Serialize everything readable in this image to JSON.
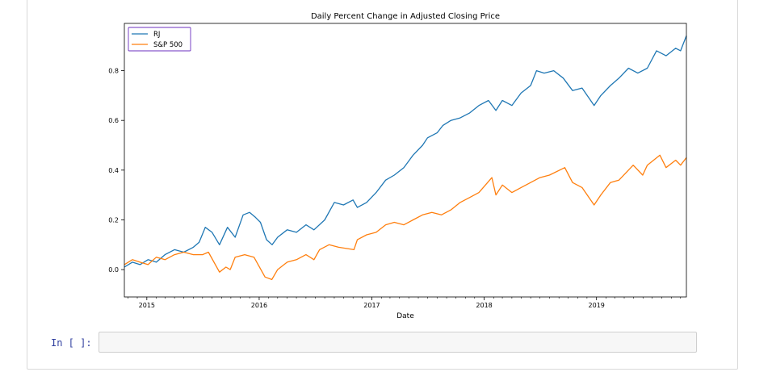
{
  "notebook": {
    "prompt_label": "In [ ]:"
  },
  "chart_data": {
    "type": "line",
    "title": "Daily Percent Change in Adjusted Closing Price",
    "xlabel": "Date",
    "ylabel": "",
    "x_ticks": [
      "2015",
      "2016",
      "2017",
      "2018",
      "2019"
    ],
    "y_ticks": [
      0.0,
      0.2,
      0.4,
      0.6,
      0.8
    ],
    "xlim": [
      "2014-10-20",
      "2019-10-20"
    ],
    "ylim": [
      -0.11,
      0.99
    ],
    "legend_position": "top-left",
    "series": [
      {
        "name": "RJ",
        "color": "#1f77b4",
        "points": [
          [
            "2014-10-20",
            0.01
          ],
          [
            "2014-11-15",
            0.03
          ],
          [
            "2014-12-10",
            0.02
          ],
          [
            "2015-01-05",
            0.04
          ],
          [
            "2015-02-01",
            0.03
          ],
          [
            "2015-03-01",
            0.06
          ],
          [
            "2015-04-01",
            0.08
          ],
          [
            "2015-05-01",
            0.07
          ],
          [
            "2015-06-01",
            0.09
          ],
          [
            "2015-06-20",
            0.11
          ],
          [
            "2015-07-10",
            0.17
          ],
          [
            "2015-08-01",
            0.15
          ],
          [
            "2015-08-25",
            0.1
          ],
          [
            "2015-09-20",
            0.17
          ],
          [
            "2015-10-15",
            0.13
          ],
          [
            "2015-11-10",
            0.22
          ],
          [
            "2015-12-01",
            0.23
          ],
          [
            "2015-12-20",
            0.21
          ],
          [
            "2016-01-05",
            0.19
          ],
          [
            "2016-01-25",
            0.12
          ],
          [
            "2016-02-12",
            0.1
          ],
          [
            "2016-03-01",
            0.13
          ],
          [
            "2016-04-01",
            0.16
          ],
          [
            "2016-05-01",
            0.15
          ],
          [
            "2016-06-01",
            0.18
          ],
          [
            "2016-06-27",
            0.16
          ],
          [
            "2016-08-01",
            0.2
          ],
          [
            "2016-09-01",
            0.27
          ],
          [
            "2016-10-01",
            0.26
          ],
          [
            "2016-11-01",
            0.28
          ],
          [
            "2016-11-15",
            0.25
          ],
          [
            "2016-12-15",
            0.27
          ],
          [
            "2017-01-15",
            0.31
          ],
          [
            "2017-02-15",
            0.36
          ],
          [
            "2017-03-15",
            0.38
          ],
          [
            "2017-04-15",
            0.41
          ],
          [
            "2017-05-15",
            0.46
          ],
          [
            "2017-06-15",
            0.5
          ],
          [
            "2017-07-01",
            0.53
          ],
          [
            "2017-08-01",
            0.55
          ],
          [
            "2017-08-20",
            0.58
          ],
          [
            "2017-09-15",
            0.6
          ],
          [
            "2017-10-15",
            0.61
          ],
          [
            "2017-11-15",
            0.63
          ],
          [
            "2017-12-15",
            0.66
          ],
          [
            "2018-01-15",
            0.68
          ],
          [
            "2018-02-08",
            0.64
          ],
          [
            "2018-03-01",
            0.68
          ],
          [
            "2018-04-01",
            0.66
          ],
          [
            "2018-05-01",
            0.71
          ],
          [
            "2018-06-01",
            0.74
          ],
          [
            "2018-06-20",
            0.8
          ],
          [
            "2018-07-15",
            0.79
          ],
          [
            "2018-08-15",
            0.8
          ],
          [
            "2018-09-15",
            0.77
          ],
          [
            "2018-10-15",
            0.72
          ],
          [
            "2018-11-15",
            0.73
          ],
          [
            "2018-12-24",
            0.66
          ],
          [
            "2019-01-15",
            0.7
          ],
          [
            "2019-02-15",
            0.74
          ],
          [
            "2019-03-15",
            0.77
          ],
          [
            "2019-04-15",
            0.81
          ],
          [
            "2019-05-15",
            0.79
          ],
          [
            "2019-06-15",
            0.81
          ],
          [
            "2019-07-15",
            0.88
          ],
          [
            "2019-08-15",
            0.86
          ],
          [
            "2019-09-15",
            0.89
          ],
          [
            "2019-10-01",
            0.88
          ],
          [
            "2019-10-20",
            0.94
          ]
        ]
      },
      {
        "name": "S&P 500",
        "color": "#ff7f0e",
        "points": [
          [
            "2014-10-20",
            0.02
          ],
          [
            "2014-11-15",
            0.04
          ],
          [
            "2014-12-10",
            0.03
          ],
          [
            "2015-01-05",
            0.02
          ],
          [
            "2015-02-01",
            0.05
          ],
          [
            "2015-03-01",
            0.04
          ],
          [
            "2015-04-01",
            0.06
          ],
          [
            "2015-05-01",
            0.07
          ],
          [
            "2015-06-01",
            0.06
          ],
          [
            "2015-07-01",
            0.06
          ],
          [
            "2015-07-20",
            0.07
          ],
          [
            "2015-08-25",
            -0.01
          ],
          [
            "2015-09-15",
            0.01
          ],
          [
            "2015-09-29",
            0.0
          ],
          [
            "2015-10-15",
            0.05
          ],
          [
            "2015-11-15",
            0.06
          ],
          [
            "2015-12-15",
            0.05
          ],
          [
            "2016-01-20",
            -0.03
          ],
          [
            "2016-02-11",
            -0.04
          ],
          [
            "2016-03-01",
            0.0
          ],
          [
            "2016-04-01",
            0.03
          ],
          [
            "2016-05-01",
            0.04
          ],
          [
            "2016-06-01",
            0.06
          ],
          [
            "2016-06-27",
            0.04
          ],
          [
            "2016-07-15",
            0.08
          ],
          [
            "2016-08-15",
            0.1
          ],
          [
            "2016-09-15",
            0.09
          ],
          [
            "2016-11-04",
            0.08
          ],
          [
            "2016-11-15",
            0.12
          ],
          [
            "2016-12-15",
            0.14
          ],
          [
            "2017-01-15",
            0.15
          ],
          [
            "2017-02-15",
            0.18
          ],
          [
            "2017-03-15",
            0.19
          ],
          [
            "2017-04-15",
            0.18
          ],
          [
            "2017-05-15",
            0.2
          ],
          [
            "2017-06-15",
            0.22
          ],
          [
            "2017-07-15",
            0.23
          ],
          [
            "2017-08-15",
            0.22
          ],
          [
            "2017-09-15",
            0.24
          ],
          [
            "2017-10-15",
            0.27
          ],
          [
            "2017-11-15",
            0.29
          ],
          [
            "2017-12-15",
            0.31
          ],
          [
            "2018-01-26",
            0.37
          ],
          [
            "2018-02-08",
            0.3
          ],
          [
            "2018-03-01",
            0.34
          ],
          [
            "2018-04-01",
            0.31
          ],
          [
            "2018-05-01",
            0.33
          ],
          [
            "2018-06-01",
            0.35
          ],
          [
            "2018-07-01",
            0.37
          ],
          [
            "2018-08-01",
            0.38
          ],
          [
            "2018-09-20",
            0.41
          ],
          [
            "2018-10-15",
            0.35
          ],
          [
            "2018-11-15",
            0.33
          ],
          [
            "2018-12-24",
            0.26
          ],
          [
            "2019-01-15",
            0.3
          ],
          [
            "2019-02-15",
            0.35
          ],
          [
            "2019-03-15",
            0.36
          ],
          [
            "2019-04-30",
            0.42
          ],
          [
            "2019-05-31",
            0.38
          ],
          [
            "2019-06-15",
            0.42
          ],
          [
            "2019-07-26",
            0.46
          ],
          [
            "2019-08-15",
            0.41
          ],
          [
            "2019-09-15",
            0.44
          ],
          [
            "2019-10-01",
            0.42
          ],
          [
            "2019-10-20",
            0.45
          ]
        ]
      }
    ]
  }
}
